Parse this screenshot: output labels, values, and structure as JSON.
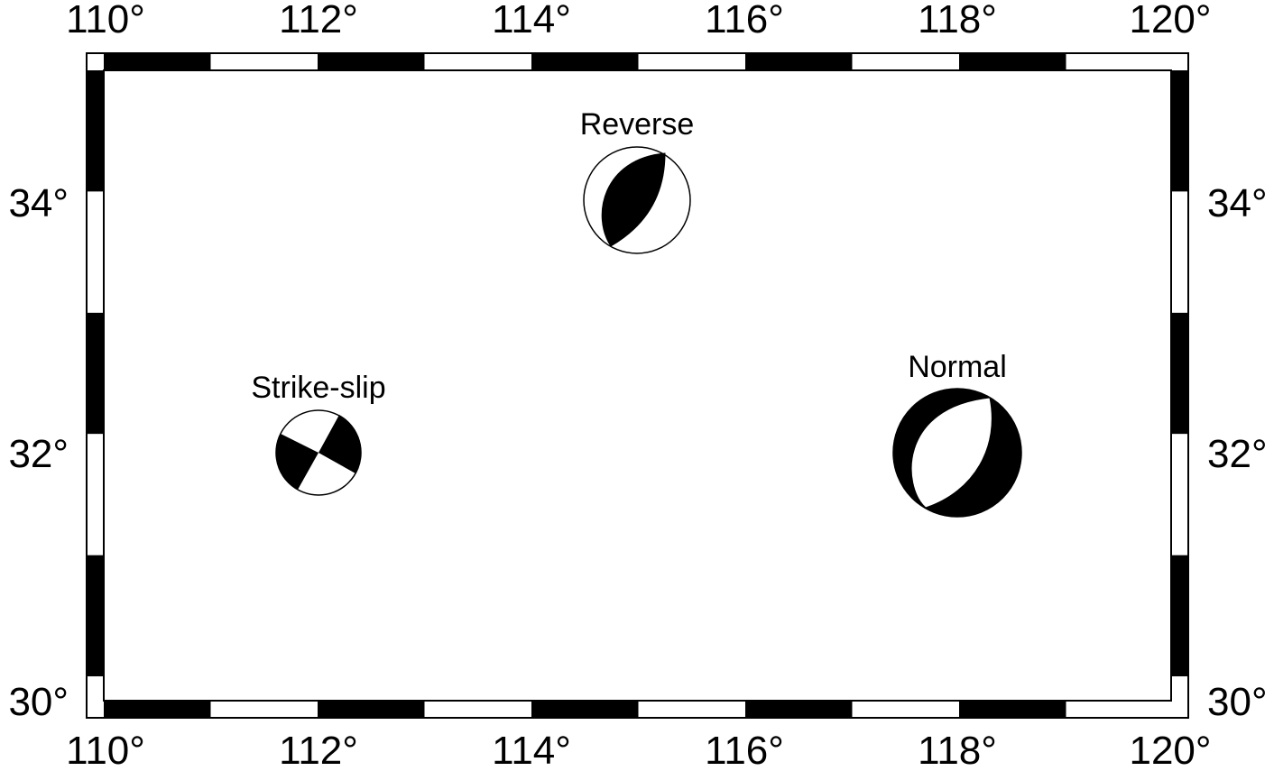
{
  "map": {
    "region": {
      "lon_min": 110,
      "lon_max": 120,
      "lat_min": 29.8,
      "lat_max": 35.0
    },
    "frame_style": "fancy alternating black/white border",
    "longitude_tick_labels": [
      "110°",
      "112°",
      "114°",
      "116°",
      "118°",
      "120°"
    ],
    "longitude_ticks": [
      110,
      112,
      114,
      116,
      118,
      120
    ],
    "latitude_tick_labels": [
      "30°",
      "32°",
      "34°"
    ],
    "latitude_ticks": [
      30,
      32,
      34
    ],
    "colors": {
      "compressional": "#000000",
      "dilatational": "#ffffff",
      "frame": "#000000"
    },
    "beachballs": [
      {
        "label": "Reverse",
        "lon": 115,
        "lat": 34,
        "mechanism": "reverse"
      },
      {
        "label": "Strike-slip",
        "lon": 112,
        "lat": 32,
        "mechanism": "strike-slip"
      },
      {
        "label": "Normal",
        "lon": 118,
        "lat": 32,
        "mechanism": "normal"
      }
    ]
  }
}
